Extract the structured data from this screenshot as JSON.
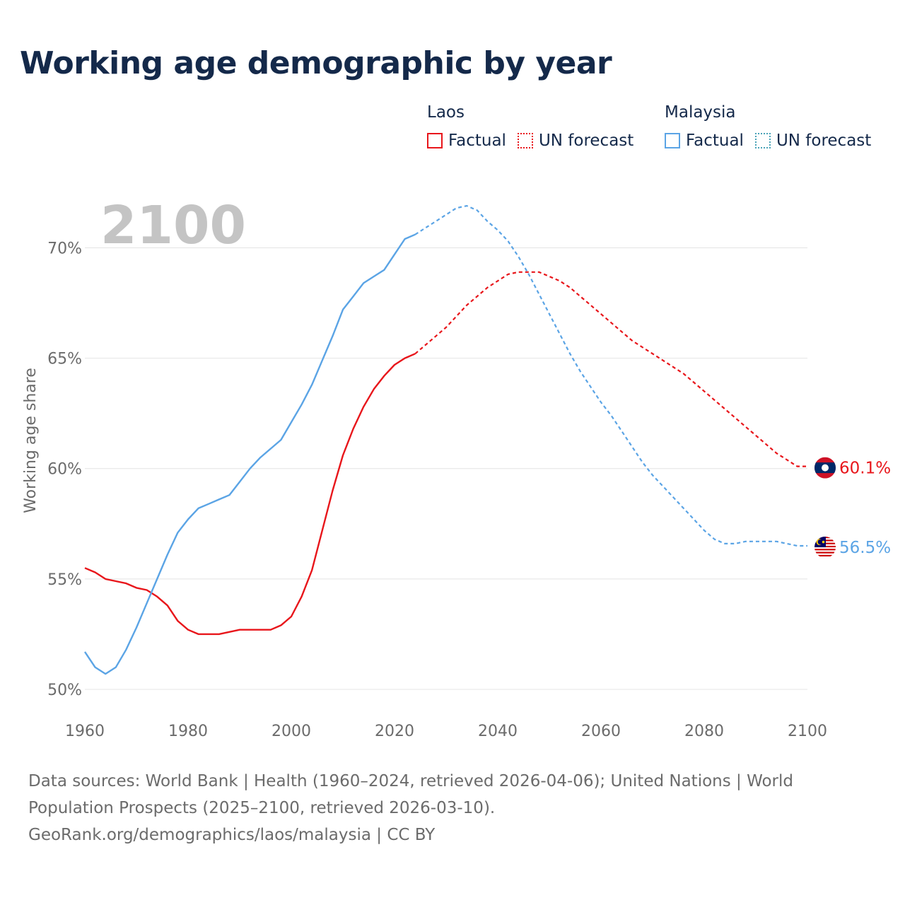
{
  "title": "Working age demographic by year",
  "legend": {
    "laos": {
      "name": "Laos",
      "factual": "Factual",
      "forecast": "UN forecast",
      "color": "#e8161b"
    },
    "malaysia": {
      "name": "Malaysia",
      "factual": "Factual",
      "forecast": "UN forecast",
      "color": "#5ba4e5"
    }
  },
  "year_watermark": "2100",
  "sources": {
    "line1": "Data sources: World Bank | Health (1960–2024, retrieved 2026-04-06); United Nations | World",
    "line2": "Population Prospects (2025–2100, retrieved 2026-03-10).",
    "line3": "GeoRank.org/demographics/laos/malaysia | CC BY"
  },
  "chart_data": {
    "type": "line",
    "title": "Working age demographic by year",
    "xlabel": "",
    "ylabel": "Working age share",
    "xlim": [
      1960,
      2100
    ],
    "ylim": [
      50,
      72
    ],
    "x_ticks": [
      1960,
      1980,
      2000,
      2020,
      2040,
      2060,
      2080,
      2100
    ],
    "x_tick_labels": [
      "1960",
      "1980",
      "2000",
      "2020",
      "2040",
      "2060",
      "2080",
      "2100"
    ],
    "y_ticks": [
      50,
      55,
      60,
      65,
      70
    ],
    "y_tick_labels": [
      "50%",
      "55%",
      "60%",
      "65%",
      "70%"
    ],
    "grid": true,
    "series": [
      {
        "name": "Laos",
        "color": "#e8161b",
        "flag": "laos-flag",
        "end_label": "60.1%",
        "factual": {
          "x": [
            1960,
            1962,
            1964,
            1966,
            1968,
            1970,
            1972,
            1974,
            1976,
            1978,
            1980,
            1982,
            1984,
            1986,
            1988,
            1990,
            1992,
            1994,
            1996,
            1998,
            2000,
            2002,
            2004,
            2006,
            2008,
            2010,
            2012,
            2014,
            2016,
            2018,
            2020,
            2022,
            2024
          ],
          "y": [
            55.5,
            55.3,
            55.0,
            54.9,
            54.8,
            54.6,
            54.5,
            54.2,
            53.8,
            53.1,
            52.7,
            52.5,
            52.5,
            52.5,
            52.6,
            52.7,
            52.7,
            52.7,
            52.7,
            52.9,
            53.3,
            54.2,
            55.4,
            57.2,
            59.0,
            60.6,
            61.8,
            62.8,
            63.6,
            64.2,
            64.7,
            65.0,
            65.2
          ]
        },
        "forecast": {
          "x": [
            2024,
            2026,
            2028,
            2030,
            2032,
            2034,
            2036,
            2038,
            2040,
            2042,
            2044,
            2046,
            2048,
            2050,
            2052,
            2054,
            2056,
            2058,
            2060,
            2062,
            2064,
            2066,
            2068,
            2070,
            2072,
            2074,
            2076,
            2078,
            2080,
            2082,
            2084,
            2086,
            2088,
            2090,
            2092,
            2094,
            2096,
            2098,
            2100
          ],
          "y": [
            65.2,
            65.6,
            66.0,
            66.4,
            66.9,
            67.4,
            67.8,
            68.2,
            68.5,
            68.8,
            68.9,
            68.9,
            68.9,
            68.7,
            68.5,
            68.2,
            67.8,
            67.4,
            67.0,
            66.6,
            66.2,
            65.8,
            65.5,
            65.2,
            64.9,
            64.6,
            64.3,
            63.9,
            63.5,
            63.1,
            62.7,
            62.3,
            61.9,
            61.5,
            61.1,
            60.7,
            60.4,
            60.1,
            60.1
          ]
        }
      },
      {
        "name": "Malaysia",
        "color": "#5ba4e5",
        "flag": "malaysia-flag",
        "end_label": "56.5%",
        "factual": {
          "x": [
            1960,
            1962,
            1964,
            1966,
            1968,
            1970,
            1972,
            1974,
            1976,
            1978,
            1980,
            1982,
            1984,
            1986,
            1988,
            1990,
            1992,
            1994,
            1996,
            1998,
            2000,
            2002,
            2004,
            2006,
            2008,
            2010,
            2012,
            2014,
            2016,
            2018,
            2020,
            2022,
            2024
          ],
          "y": [
            51.7,
            51.0,
            50.7,
            51.0,
            51.8,
            52.8,
            53.9,
            55.0,
            56.1,
            57.1,
            57.7,
            58.2,
            58.4,
            58.6,
            58.8,
            59.4,
            60.0,
            60.5,
            60.9,
            61.3,
            62.1,
            62.9,
            63.8,
            64.9,
            66.0,
            67.2,
            67.8,
            68.4,
            68.7,
            69.0,
            69.7,
            70.4,
            70.6
          ]
        },
        "forecast": {
          "x": [
            2024,
            2026,
            2028,
            2030,
            2032,
            2034,
            2036,
            2038,
            2040,
            2042,
            2044,
            2046,
            2048,
            2050,
            2052,
            2054,
            2056,
            2058,
            2060,
            2062,
            2064,
            2066,
            2068,
            2070,
            2072,
            2074,
            2076,
            2078,
            2080,
            2082,
            2084,
            2086,
            2088,
            2090,
            2092,
            2094,
            2096,
            2098,
            2100
          ],
          "y": [
            70.6,
            70.9,
            71.2,
            71.5,
            71.8,
            71.9,
            71.7,
            71.2,
            70.8,
            70.3,
            69.6,
            68.8,
            67.9,
            67.0,
            66.1,
            65.2,
            64.4,
            63.7,
            63.0,
            62.4,
            61.7,
            61.0,
            60.3,
            59.7,
            59.2,
            58.7,
            58.2,
            57.7,
            57.2,
            56.8,
            56.6,
            56.6,
            56.7,
            56.7,
            56.7,
            56.7,
            56.6,
            56.5,
            56.5
          ]
        }
      }
    ]
  }
}
